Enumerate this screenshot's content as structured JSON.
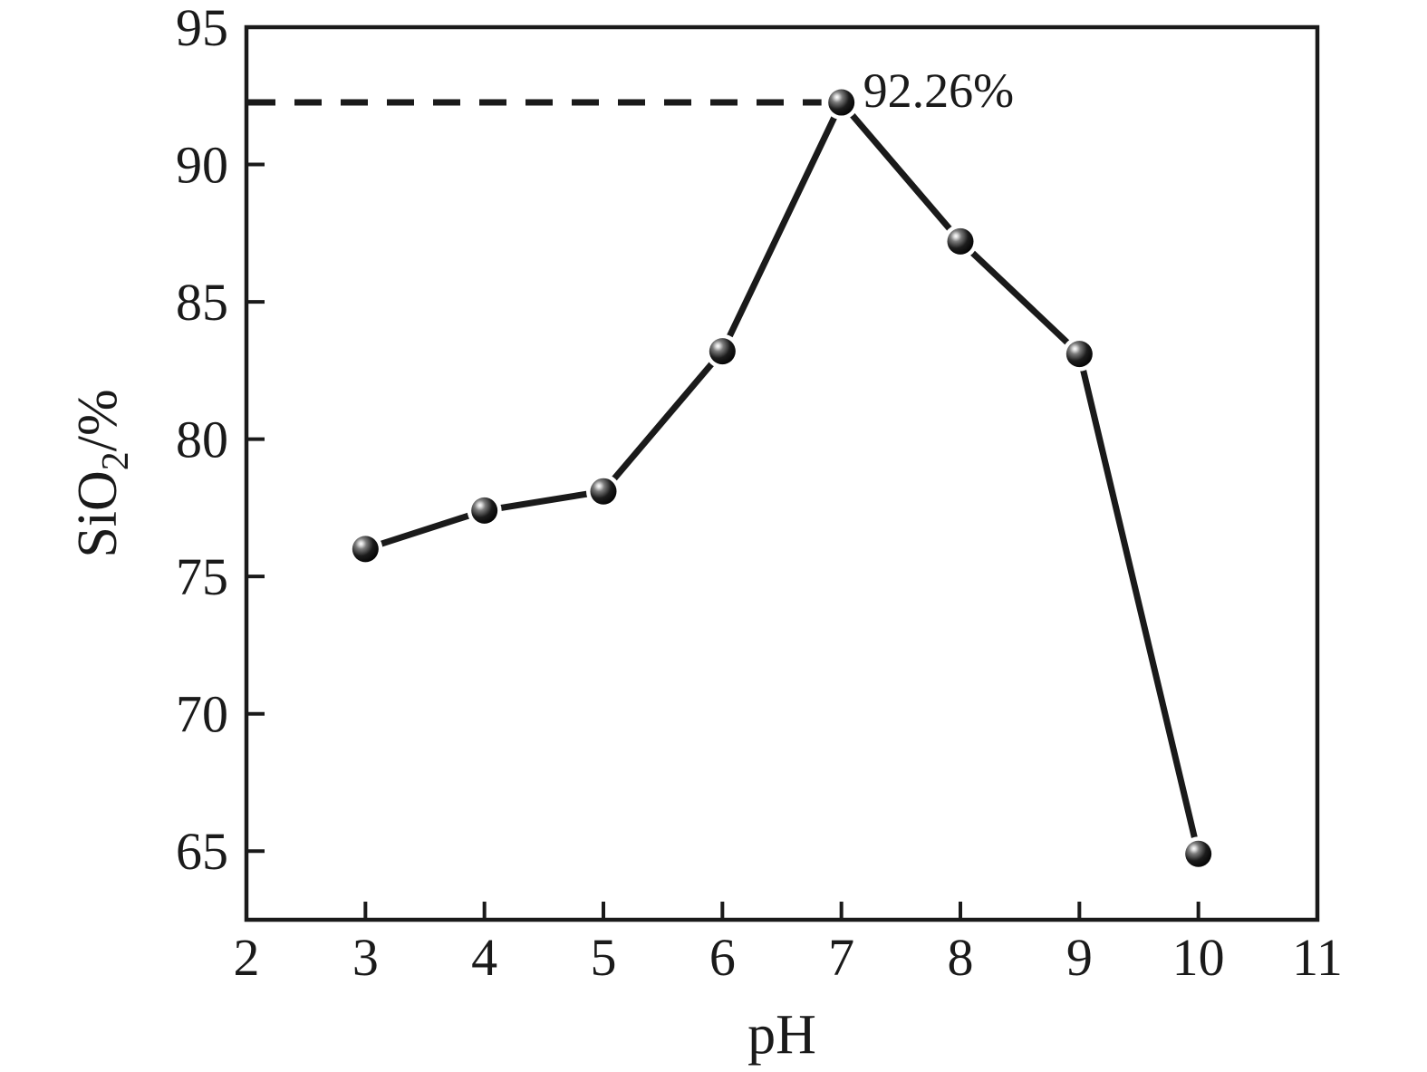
{
  "chart_data": {
    "type": "line",
    "title": "",
    "xlabel": "pH",
    "ylabel": "SiO2/%",
    "ylabel_rich": [
      {
        "t": "SiO",
        "sub": false
      },
      {
        "t": "2",
        "sub": true
      },
      {
        "t": "/%",
        "sub": false
      }
    ],
    "x": [
      3,
      4,
      5,
      6,
      7,
      8,
      9,
      10
    ],
    "y": [
      76.0,
      77.4,
      78.1,
      83.2,
      92.26,
      87.2,
      83.1,
      64.9
    ],
    "x_ticks": [
      2,
      3,
      4,
      5,
      6,
      7,
      8,
      9,
      10,
      11
    ],
    "y_ticks": [
      65,
      70,
      75,
      80,
      85,
      90,
      95
    ],
    "xlim": [
      2,
      11
    ],
    "ylim": [
      62.5,
      95
    ],
    "grid": false,
    "legend": "none",
    "annotation": {
      "text": "92.26%",
      "x": 7,
      "y": 92.26
    },
    "reference_line": {
      "y": 92.26,
      "style": "dashed",
      "from_x": 2,
      "to_x": 7
    },
    "line_color": "#1a1a1a",
    "background_color": "#ffffff",
    "marker_style": "sphere"
  }
}
